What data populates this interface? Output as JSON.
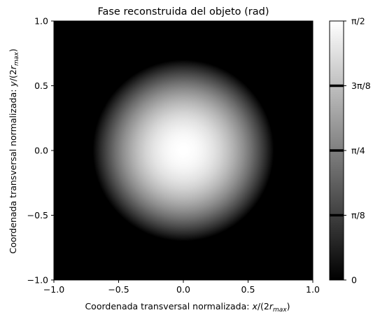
{
  "chart_data": {
    "type": "heatmap",
    "title": "Fase reconstruida del objeto (rad)",
    "xlabel": "Coordenada transversal normalizada: x/(2r_max)",
    "ylabel": "Coordenada transversal normalizada: y/(2r_max)",
    "xlabel_parts": {
      "text": "Coordenada transversal normalizada: ",
      "math_var": "x",
      "math_rest": "/(2",
      "math_r": "r",
      "math_sub": "max",
      "math_close": ")"
    },
    "ylabel_parts": {
      "text": "Coordenada transversal normalizada: ",
      "math_var": "y",
      "math_rest": "/(2",
      "math_r": "r",
      "math_sub": "max",
      "math_close": ")"
    },
    "xlim": [
      -1.0,
      1.0
    ],
    "ylim": [
      -1.0,
      1.0
    ],
    "x_ticks": [
      -1.0,
      -0.5,
      0.0,
      0.5,
      1.0
    ],
    "x_tick_labels": [
      "−1.0",
      "−0.5",
      "0.0",
      "0.5",
      "1.0"
    ],
    "y_ticks": [
      -1.0,
      -0.5,
      0.0,
      0.5,
      1.0
    ],
    "y_tick_labels": [
      "−1.0",
      "−0.5",
      "0.0",
      "0.5",
      "1.0"
    ],
    "field": {
      "description_of_values": "phase(r) = (pi/2) * (1 - (r/R)^2), zero outside R",
      "center": [
        0.0,
        0.0
      ],
      "radius": 0.7,
      "max_value": 1.5708,
      "min_value": 0.0
    },
    "colormap": "gray",
    "colorbar": {
      "vmin": 0.0,
      "vmax": 1.5708,
      "ticks": [
        0.0,
        0.3927,
        0.7854,
        1.1781,
        1.5708
      ],
      "tick_labels": [
        "0",
        "π/8",
        "π/4",
        "3π/8",
        "π/2"
      ],
      "contour_levels": [
        0.3927,
        0.7854,
        1.1781
      ]
    },
    "grid": false
  }
}
